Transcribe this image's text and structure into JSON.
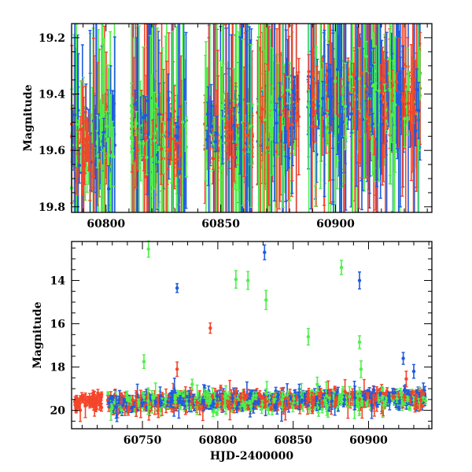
{
  "colors": {
    "blue": "#1f5be0",
    "green": "#4ef04a",
    "red": "#f4452a"
  },
  "chart_data": [
    {
      "type": "scatter",
      "title": "",
      "xlabel": "",
      "ylabel": "Magnitude",
      "xlim": [
        60785,
        60942
      ],
      "ylim": [
        19.82,
        19.15
      ],
      "y_inverted": true,
      "xticks": [
        60800,
        60850,
        60900
      ],
      "yticks": [
        19.2,
        19.4,
        19.6,
        19.8
      ],
      "series_colors": [
        "blue",
        "green",
        "red"
      ],
      "description_of_data": "Dense photometric time series with large error bars",
      "seasons": [
        {
          "x0": 60785,
          "x1": 60804,
          "mean": 19.57
        },
        {
          "x0": 60811,
          "x1": 60835,
          "mean": 19.55
        },
        {
          "x0": 60843,
          "x1": 60864,
          "mean": 19.52
        },
        {
          "x0": 60866,
          "x1": 60884,
          "mean": 19.47
        },
        {
          "x0": 60888,
          "x1": 60937,
          "mean": 19.41
        }
      ]
    },
    {
      "type": "scatter",
      "title": "",
      "xlabel": "HJD-2400000",
      "ylabel": "Magnitude",
      "xlim": [
        60703,
        60942
      ],
      "ylim": [
        20.85,
        12.2
      ],
      "y_inverted": true,
      "xticks": [
        60750,
        60800,
        60850,
        60900
      ],
      "yticks": [
        14,
        16,
        18,
        20
      ],
      "baseline": {
        "x0": 60705,
        "x1": 60938,
        "y0": 19.65,
        "y1": 19.45
      },
      "outliers": [
        {
          "x": 60754,
          "y": 12.55,
          "series": "green"
        },
        {
          "x": 60773,
          "y": 14.35,
          "series": "blue"
        },
        {
          "x": 60812,
          "y": 13.95,
          "series": "green"
        },
        {
          "x": 60820,
          "y": 14.0,
          "series": "green"
        },
        {
          "x": 60831,
          "y": 12.7,
          "series": "blue"
        },
        {
          "x": 60832,
          "y": 14.9,
          "series": "green"
        },
        {
          "x": 60882,
          "y": 13.4,
          "series": "green"
        },
        {
          "x": 60894,
          "y": 14.0,
          "series": "blue"
        },
        {
          "x": 60795,
          "y": 16.2,
          "series": "red"
        },
        {
          "x": 60860,
          "y": 16.6,
          "series": "green"
        },
        {
          "x": 60894,
          "y": 16.85,
          "series": "green"
        },
        {
          "x": 60751,
          "y": 17.75,
          "series": "green"
        },
        {
          "x": 60773,
          "y": 18.1,
          "series": "red"
        },
        {
          "x": 60895,
          "y": 18.1,
          "series": "green"
        },
        {
          "x": 60923,
          "y": 17.6,
          "series": "blue"
        },
        {
          "x": 60930,
          "y": 18.2,
          "series": "blue"
        },
        {
          "x": 60925,
          "y": 18.55,
          "series": "red"
        },
        {
          "x": 60783,
          "y": 18.8,
          "series": "green"
        },
        {
          "x": 60866,
          "y": 18.8,
          "series": "green"
        }
      ]
    }
  ]
}
